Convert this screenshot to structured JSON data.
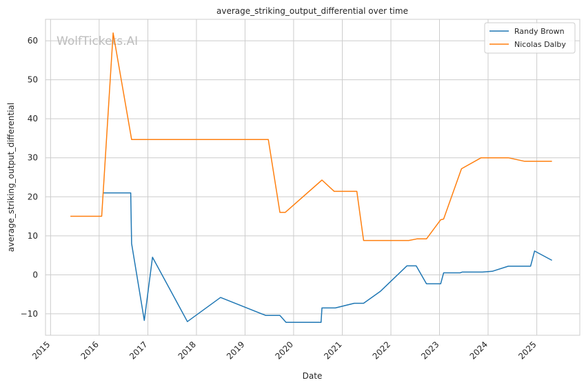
{
  "chart_data": {
    "type": "line",
    "title": "average_striking_output_differential over time",
    "xlabel": "Date",
    "ylabel": "average_striking_output_differential",
    "watermark": "WolfTickets.AI",
    "x_ticks": [
      "2015",
      "2016",
      "2017",
      "2018",
      "2019",
      "2020",
      "2021",
      "2022",
      "2023",
      "2024",
      "2025"
    ],
    "y_ticks": [
      -10,
      0,
      10,
      20,
      30,
      40,
      50,
      60
    ],
    "xlim": [
      "2014-11-24",
      "2025-11-20"
    ],
    "ylim": [
      -15.5,
      65.5
    ],
    "grid": true,
    "legend_position": "top-right",
    "series": [
      {
        "name": "Randy Brown",
        "color": "#1f77b4",
        "points": [
          [
            "2016-02-01",
            21.0
          ],
          [
            "2016-08-25",
            21.0
          ],
          [
            "2016-09-01",
            8.0
          ],
          [
            "2016-12-05",
            -11.7
          ],
          [
            "2017-02-05",
            4.5
          ],
          [
            "2017-10-25",
            -12.0
          ],
          [
            "2018-07-01",
            -5.8
          ],
          [
            "2019-06-05",
            -10.4
          ],
          [
            "2019-09-20",
            -10.4
          ],
          [
            "2019-11-05",
            -12.2
          ],
          [
            "2020-07-25",
            -12.2
          ],
          [
            "2020-08-01",
            -8.5
          ],
          [
            "2020-11-10",
            -8.5
          ],
          [
            "2021-04-01",
            -7.3
          ],
          [
            "2021-06-10",
            -7.3
          ],
          [
            "2021-10-15",
            -4.2
          ],
          [
            "2022-05-01",
            2.3
          ],
          [
            "2022-07-10",
            2.3
          ],
          [
            "2022-09-25",
            -2.3
          ],
          [
            "2023-01-10",
            -2.3
          ],
          [
            "2023-02-01",
            0.5
          ],
          [
            "2023-06-05",
            0.5
          ],
          [
            "2023-06-20",
            0.7
          ],
          [
            "2023-11-20",
            0.7
          ],
          [
            "2024-02-01",
            0.9
          ],
          [
            "2024-06-01",
            2.2
          ],
          [
            "2024-11-15",
            2.2
          ],
          [
            "2024-12-15",
            6.1
          ],
          [
            "2025-04-25",
            3.7
          ]
        ]
      },
      {
        "name": "Nicolas Dalby",
        "color": "#ff7f0e",
        "points": [
          [
            "2015-05-30",
            15.0
          ],
          [
            "2016-01-20",
            15.0
          ],
          [
            "2016-04-15",
            62.0
          ],
          [
            "2016-09-01",
            34.7
          ],
          [
            "2019-06-25",
            34.7
          ],
          [
            "2019-09-20",
            16.0
          ],
          [
            "2019-10-30",
            16.0
          ],
          [
            "2020-08-01",
            24.3
          ],
          [
            "2020-11-01",
            21.4
          ],
          [
            "2021-04-20",
            21.4
          ],
          [
            "2021-06-10",
            8.8
          ],
          [
            "2022-05-15",
            8.8
          ],
          [
            "2022-07-15",
            9.2
          ],
          [
            "2022-09-25",
            9.2
          ],
          [
            "2023-01-10",
            14.1
          ],
          [
            "2023-02-01",
            14.3
          ],
          [
            "2023-06-15",
            27.2
          ],
          [
            "2023-11-10",
            30.0
          ],
          [
            "2024-06-01",
            30.0
          ],
          [
            "2024-10-01",
            29.1
          ],
          [
            "2025-04-25",
            29.1
          ]
        ]
      }
    ]
  }
}
